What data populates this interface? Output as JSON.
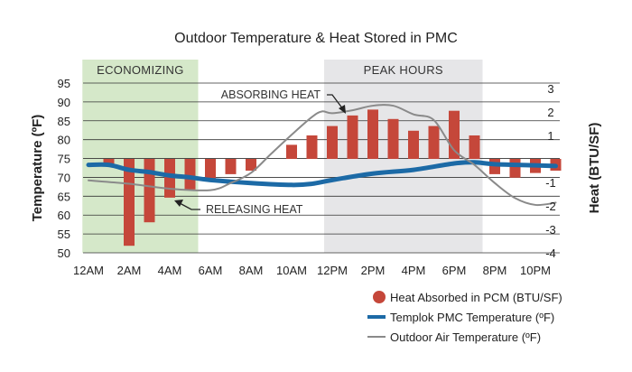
{
  "chart_data": {
    "type": "bar+line",
    "title": "Outdoor Temperature & Heat Stored in PMC",
    "ylabel_left": "Temperature (ºF)",
    "ylabel_right": "Heat (BTU/SF)",
    "ylim_left": [
      50,
      95
    ],
    "ylim_right": [
      -4,
      3.23
    ],
    "yticks_left": [
      95,
      90,
      85,
      80,
      75,
      70,
      65,
      60,
      55,
      50
    ],
    "yticks_right": [
      3,
      2,
      1,
      -1,
      -2,
      -3,
      -4
    ],
    "xticks": [
      "12AM",
      "2AM",
      "4AM",
      "6AM",
      "8AM",
      "10AM",
      "12PM",
      "2PM",
      "4PM",
      "6PM",
      "8PM",
      "10PM"
    ],
    "grid": true,
    "legend_placement": "bottom-right",
    "bands": [
      {
        "label": "ECONOMIZING",
        "start_hour": -0.3,
        "end_hour": 5.4,
        "color": "#d5e8c9"
      },
      {
        "label": "PEAK HOURS",
        "start_hour": 11.6,
        "end_hour": 19.4,
        "color": "#e6e6e8"
      }
    ],
    "annotations": [
      {
        "text": "ABSORBING HEAT",
        "hour": 13,
        "value_heat": 2.0
      },
      {
        "text": "RELEASING HEAT",
        "hour": 4.2,
        "value_heat": -1.7
      }
    ],
    "series": [
      {
        "name": "Heat Absorbed in PCM (BTU/SF)",
        "type": "bar",
        "axis": "right",
        "color": "#c5473a",
        "hours": [
          1,
          2,
          3,
          4,
          5,
          6,
          7,
          8,
          10,
          11,
          12,
          13,
          14,
          15,
          16,
          17,
          18,
          19,
          20,
          21,
          22,
          23
        ],
        "values": [
          -0.25,
          -3.7,
          -2.7,
          -1.65,
          -1.3,
          -0.9,
          -0.65,
          -0.5,
          0.6,
          1.0,
          1.4,
          1.85,
          2.1,
          1.7,
          1.2,
          1.4,
          2.05,
          1.0,
          -0.65,
          -0.8,
          -0.6,
          -0.5
        ]
      },
      {
        "name": "Templok PMC Temperature (ºF)",
        "type": "line",
        "axis": "left",
        "color": "#1c6aa6",
        "hours": [
          0,
          1,
          2,
          3,
          4,
          5,
          6,
          8,
          10,
          11,
          12,
          14,
          16,
          18,
          19,
          20,
          22,
          23
        ],
        "values": [
          73.3,
          73.3,
          72,
          71.4,
          70.5,
          70,
          69.3,
          68.5,
          68,
          68.3,
          69.3,
          71,
          72,
          73.7,
          74,
          73.5,
          73.2,
          73
        ]
      },
      {
        "name": "Outdoor Air Temperature (ºF)",
        "type": "line",
        "axis": "left",
        "color": "#8a8a8a",
        "hours": [
          0,
          2,
          4,
          6,
          7,
          8,
          9,
          10,
          11,
          11.5,
          12,
          13,
          14,
          15,
          16,
          17,
          18,
          19,
          20,
          21,
          22,
          23
        ],
        "values": [
          69.2,
          68.3,
          67,
          66.6,
          68.5,
          71.2,
          76.3,
          81.3,
          86,
          87.5,
          87,
          87.8,
          89,
          89,
          86.7,
          85.2,
          77.2,
          73.3,
          68.5,
          64.5,
          62.7,
          63.3
        ]
      }
    ]
  }
}
